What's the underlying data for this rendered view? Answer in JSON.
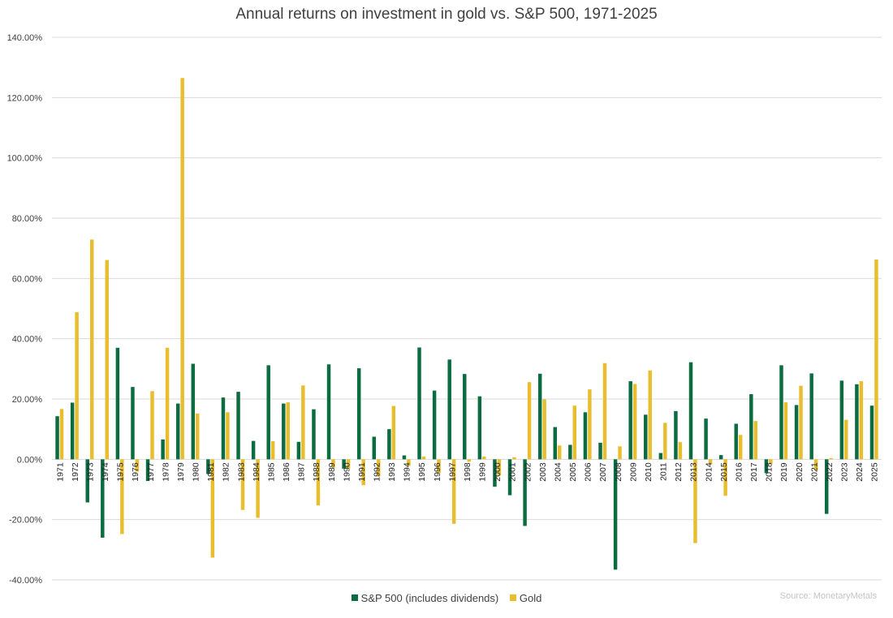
{
  "chart_data": {
    "type": "bar",
    "title": "Annual returns on investment in gold vs. S&P 500, 1971-2025",
    "source": "Source: MonetaryMetals",
    "categories": [
      "1971",
      "1972",
      "1973",
      "1974",
      "1975",
      "1976",
      "1977",
      "1978",
      "1979",
      "1980",
      "1981",
      "1982",
      "1983",
      "1984",
      "1985",
      "1986",
      "1987",
      "1988",
      "1989",
      "1990",
      "1991",
      "1992",
      "1993",
      "1994",
      "1995",
      "1996",
      "1997",
      "1998",
      "1999",
      "2000",
      "2001",
      "2002",
      "2003",
      "2004",
      "2005",
      "2006",
      "2007",
      "2008",
      "2009",
      "2010",
      "2011",
      "2012",
      "2013",
      "2014",
      "2015",
      "2016",
      "2017",
      "2018",
      "2019",
      "2020",
      "2021",
      "2022",
      "2023",
      "2024",
      "2025"
    ],
    "series": [
      {
        "name": "S&P 500 (includes dividends)",
        "color": "#0b6b41",
        "values": [
          14.3,
          18.8,
          -14.3,
          -26.0,
          37.0,
          24.0,
          -7.2,
          6.6,
          18.5,
          31.7,
          -4.9,
          20.5,
          22.4,
          6.1,
          31.2,
          18.5,
          5.8,
          16.6,
          31.5,
          -3.1,
          30.2,
          7.5,
          10.0,
          1.3,
          37.1,
          22.8,
          33.1,
          28.3,
          20.9,
          -9.1,
          -11.9,
          -22.1,
          28.4,
          10.7,
          4.8,
          15.6,
          5.5,
          -36.6,
          25.9,
          14.8,
          2.1,
          16.0,
          32.2,
          13.5,
          1.4,
          11.8,
          21.6,
          -4.6,
          31.2,
          18.0,
          28.5,
          -18.1,
          26.1,
          24.9,
          17.8
        ]
      },
      {
        "name": "Gold",
        "color": "#e8be2e",
        "values": [
          16.7,
          48.8,
          72.9,
          66.1,
          -24.8,
          -4.1,
          22.6,
          37.0,
          126.5,
          15.2,
          -32.6,
          15.6,
          -16.8,
          -19.4,
          6.0,
          18.9,
          24.5,
          -15.3,
          -2.8,
          -3.1,
          -8.6,
          -5.7,
          17.7,
          -2.2,
          0.9,
          -4.6,
          -21.4,
          -0.8,
          0.9,
          -5.4,
          0.7,
          25.6,
          19.9,
          4.6,
          17.8,
          23.2,
          31.9,
          4.3,
          25.0,
          29.5,
          12.1,
          5.7,
          -27.8,
          -1.5,
          -12.1,
          8.1,
          12.7,
          -1.6,
          18.9,
          24.4,
          -3.6,
          0.4,
          13.1,
          25.9,
          66.3
        ]
      }
    ],
    "ylim": [
      -40,
      140
    ],
    "yticks": [
      -40,
      -20,
      0,
      20,
      40,
      60,
      80,
      100,
      120,
      140
    ],
    "ytick_format": "0.00%",
    "grid": "horizontal",
    "legend": "bottom"
  }
}
